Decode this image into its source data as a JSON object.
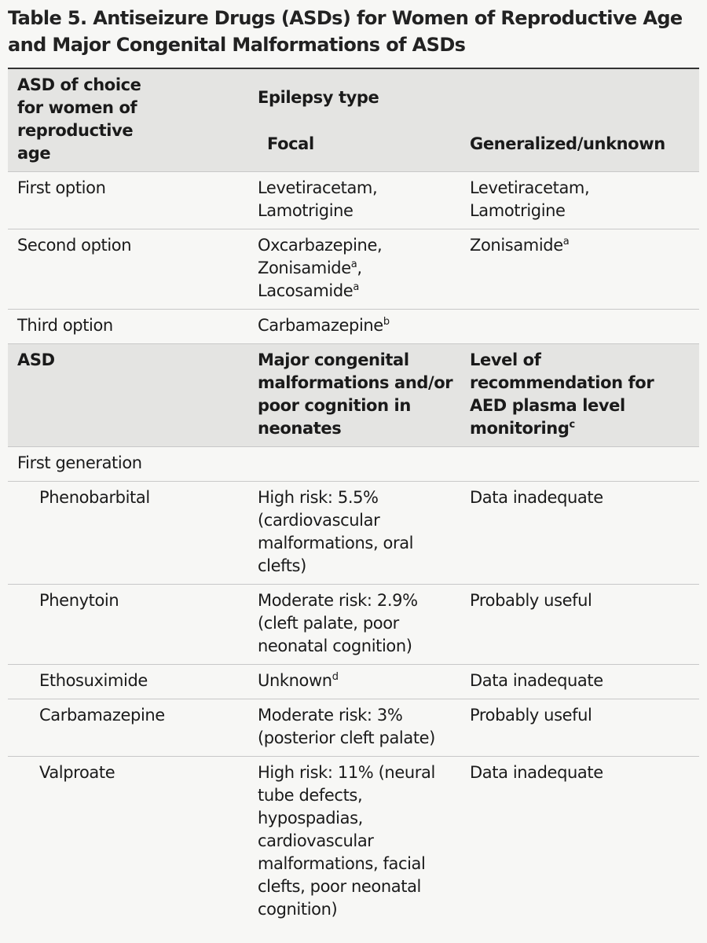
{
  "title": "Table 5. Antiseizure Drugs (ASDs) for Women of Reproductive Age and Major Congenital Malformations of ASDs",
  "table1": {
    "header": {
      "choice": "ASD of choice for women of reproductive age",
      "group": "Epilepsy type",
      "focal": "Focal",
      "generalized": "Generalized/unknown"
    },
    "rows": [
      [
        [
          {
            "text": "First option"
          }
        ],
        [
          {
            "text": "Levetiracetam, Lamotrigine"
          }
        ],
        [
          {
            "text": "Levetiracetam, Lamotrigine"
          }
        ]
      ],
      [
        [
          {
            "text": "Second option"
          }
        ],
        [
          {
            "text": "Oxcarbazepine, Zonisamide"
          },
          {
            "sup": "a"
          },
          {
            "text": ", Lacosamide"
          },
          {
            "sup": "a"
          }
        ],
        [
          {
            "text": "Zonisamide"
          },
          {
            "sup": "a"
          }
        ]
      ],
      [
        [
          {
            "text": "Third option"
          }
        ],
        [
          {
            "text": "Carbamazepine"
          },
          {
            "sup": "b"
          }
        ]
      ]
    ]
  },
  "table2": {
    "header": [
      [
        {
          "text": "ASD"
        }
      ],
      [
        {
          "text": "Major congenital malformations and/or poor cognition in neonates"
        }
      ],
      [
        {
          "text": "Level of recommendation for AED plasma level monitoring"
        },
        {
          "sup": "c"
        }
      ]
    ],
    "section": "First generation",
    "rows": [
      [
        [
          {
            "text": "Phenobarbital"
          }
        ],
        [
          {
            "text": "High risk: 5.5% (cardiovascular malformations, oral clefts)"
          }
        ],
        [
          {
            "text": "Data inadequate"
          }
        ]
      ],
      [
        [
          {
            "text": "Phenytoin"
          }
        ],
        [
          {
            "text": "Moderate risk: 2.9% (cleft palate, poor neonatal cognition)"
          }
        ],
        [
          {
            "text": "Probably useful"
          }
        ]
      ],
      [
        [
          {
            "text": "Ethosuximide"
          }
        ],
        [
          {
            "text": "Unknown"
          },
          {
            "sup": "d"
          }
        ],
        [
          {
            "text": "Data inadequate"
          }
        ]
      ],
      [
        [
          {
            "text": "Carbamazepine"
          }
        ],
        [
          {
            "text": "Moderate risk: 3% (posterior cleft palate)"
          }
        ],
        [
          {
            "text": "Probably useful"
          }
        ]
      ],
      [
        [
          {
            "text": "Valproate"
          }
        ],
        [
          {
            "text": "High risk: 11% (neural tube defects, hypospadias, cardiovascular malformations, facial clefts, poor neonatal cognition)"
          }
        ],
        [
          {
            "text": "Data inadequate"
          }
        ]
      ]
    ]
  }
}
